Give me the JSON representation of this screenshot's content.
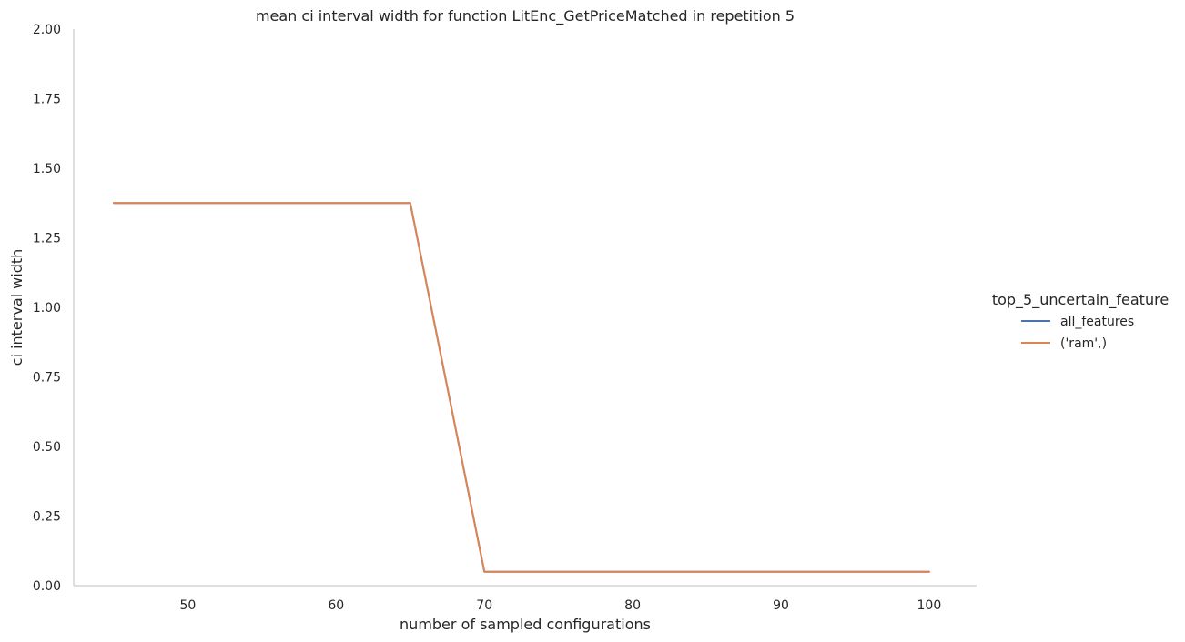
{
  "chart_data": {
    "type": "line",
    "title": "mean ci interval width for function LitEnc_GetPriceMatched in repetition 5",
    "xlabel": "number of sampled configurations",
    "ylabel": "ci interval width",
    "xlim": [
      42.3,
      103.2
    ],
    "ylim": [
      0,
      2
    ],
    "xticks": [
      50,
      60,
      70,
      80,
      90,
      100
    ],
    "yticks": [
      0,
      0.25,
      0.5,
      0.75,
      1.0,
      1.25,
      1.5,
      1.75,
      2.0
    ],
    "ytick_labels": [
      "0.00",
      "0.25",
      "0.50",
      "0.75",
      "1.00",
      "1.25",
      "1.50",
      "1.75",
      "2.00"
    ],
    "grid": false,
    "legend": {
      "title": "top_5_uncertain_feature",
      "placement": "right"
    },
    "series": [
      {
        "name": "all_features",
        "color": "#4c72b0",
        "x": [
          45,
          50,
          55,
          60,
          65,
          70,
          75,
          80,
          85,
          90,
          95,
          100
        ],
        "y": [
          1.375,
          1.375,
          1.375,
          1.375,
          1.375,
          0.05,
          0.05,
          0.05,
          0.05,
          0.05,
          0.05,
          0.05
        ]
      },
      {
        "name": "('ram',)",
        "color": "#dd8452",
        "x": [
          45,
          50,
          55,
          60,
          65,
          70,
          75,
          80,
          85,
          90,
          95,
          100
        ],
        "y": [
          1.375,
          1.375,
          1.375,
          1.375,
          1.375,
          0.05,
          0.05,
          0.05,
          0.05,
          0.05,
          0.05,
          0.05
        ]
      }
    ]
  }
}
